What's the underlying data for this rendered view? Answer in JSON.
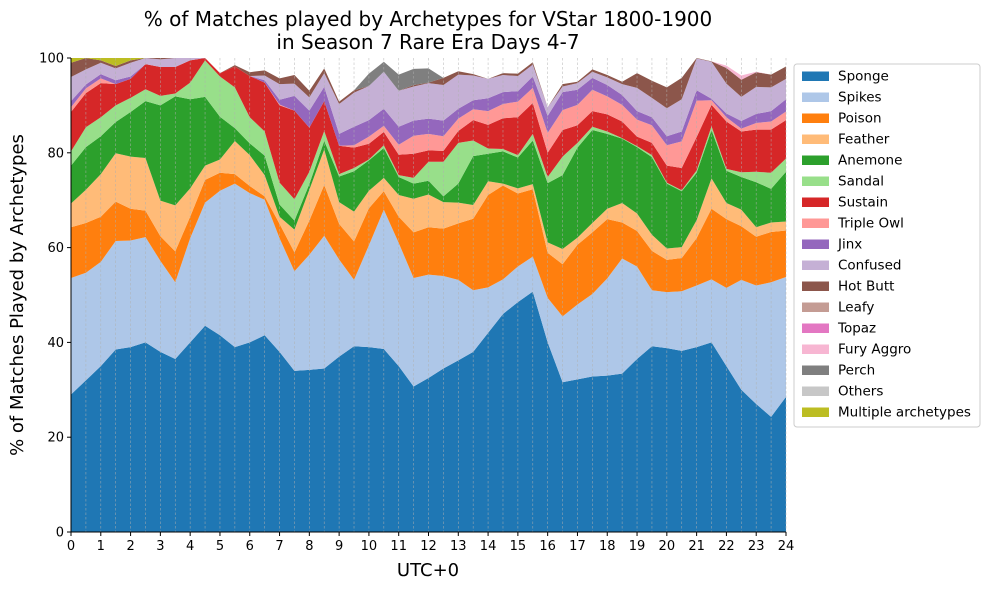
{
  "chart_data": {
    "type": "area",
    "stacked": true,
    "title": "% of Matches played by Archetypes for VStar 1800-1900",
    "subtitle": "in Season 7 Rare Era Days 4-7",
    "xlabel": "UTC+0",
    "ylabel": "% of Matches Played by Archetypes",
    "xlim": [
      0,
      24
    ],
    "ylim": [
      0,
      100
    ],
    "xticks": [
      "0",
      "1",
      "2",
      "3",
      "4",
      "5",
      "6",
      "7",
      "8",
      "9",
      "10",
      "11",
      "12",
      "13",
      "14",
      "15",
      "16",
      "17",
      "18",
      "19",
      "20",
      "21",
      "22",
      "23",
      "24"
    ],
    "yticks": [
      "0",
      "20",
      "40",
      "60",
      "80",
      "100"
    ],
    "grid": "vertical dashed",
    "legend_position": "outside-right",
    "x": [
      0,
      0.5,
      1,
      1.5,
      2,
      2.5,
      3,
      3.5,
      4,
      4.5,
      5,
      5.5,
      6,
      6.5,
      7,
      7.5,
      8,
      8.5,
      9,
      9.5,
      10,
      10.5,
      11,
      11.5,
      12,
      12.5,
      13,
      13.5,
      14,
      14.5,
      15,
      15.5,
      16,
      16.5,
      17,
      17.5,
      18,
      18.5,
      19,
      19.5,
      20,
      20.5,
      21,
      21.5,
      22,
      22.5,
      23,
      23.5,
      24
    ],
    "series": [
      {
        "name": "Sponge",
        "color": "#1f77b4",
        "values": [
          29,
          32,
          35,
          38.5,
          39,
          40,
          38,
          36.5,
          40,
          43.5,
          41.5,
          39,
          40,
          41.5,
          38,
          34,
          34.2,
          34.5,
          37,
          39.2,
          39,
          38.6,
          35,
          30.7,
          32.5,
          34.5,
          36.2,
          38,
          42,
          46,
          48.5,
          50.7,
          40,
          31.6,
          32.2,
          32.8,
          33,
          33.4,
          36.5,
          39.2,
          38.8,
          38.2,
          39,
          40,
          35,
          30,
          27,
          24.3,
          28.5
        ]
      },
      {
        "name": "Spikes",
        "color": "#aec7e8",
        "values": [
          24.6,
          22.7,
          22,
          22.9,
          22.5,
          22.2,
          19.2,
          16.2,
          22,
          26,
          30.5,
          34.5,
          31.5,
          28.6,
          24,
          21,
          24.3,
          28,
          20.5,
          14,
          21.5,
          29.4,
          26,
          22.9,
          21.8,
          19.5,
          17,
          13,
          9.6,
          7.3,
          7.5,
          7.4,
          9.4,
          13.9,
          15.8,
          17.4,
          20.5,
          24.3,
          19.5,
          11.8,
          11.8,
          12.6,
          13,
          13.3,
          16.5,
          23.2,
          25,
          28.4,
          25.3
        ]
      },
      {
        "name": "Poison",
        "color": "#ff7f0e",
        "values": [
          10.7,
          10.5,
          9.5,
          8.3,
          6.7,
          5.6,
          5.2,
          6.5,
          4.5,
          4.8,
          3.8,
          2,
          1.5,
          0.7,
          3,
          4,
          7.2,
          10.7,
          7.5,
          8.1,
          7.8,
          3.9,
          5.5,
          9.6,
          10,
          10,
          11.9,
          15.1,
          19.5,
          19.8,
          15.4,
          14.2,
          9.5,
          11,
          12.6,
          13,
          12.5,
          7.6,
          7.5,
          8.3,
          6.8,
          7,
          10,
          14.9,
          14.5,
          11.3,
          10.3,
          10.6,
          9.8
        ]
      },
      {
        "name": "Feather",
        "color": "#ffbb78",
        "values": [
          5,
          7,
          9,
          10.2,
          11,
          11.1,
          7.5,
          9.7,
          6,
          3,
          2.8,
          7,
          6.5,
          4.5,
          1.5,
          4.8,
          6.5,
          7.5,
          4.6,
          6.3,
          3.7,
          2.8,
          4.6,
          7.1,
          6.9,
          5.6,
          4.4,
          2.9,
          2.9,
          0.4,
          1.1,
          1.1,
          2.2,
          3.2,
          1.5,
          2,
          2.2,
          4.1,
          3.7,
          3.4,
          2.4,
          2.3,
          3.8,
          6.4,
          3.4,
          3.5,
          2,
          2,
          1.9
        ]
      },
      {
        "name": "Anemone",
        "color": "#2ca02c",
        "values": [
          8,
          9,
          8,
          6.6,
          9.4,
          12,
          20.1,
          23,
          18.8,
          14.5,
          9,
          2.7,
          2.5,
          4.1,
          2.6,
          1.9,
          1.2,
          1.8,
          5.4,
          8.5,
          6.4,
          6.3,
          3.8,
          3.2,
          2.9,
          1.2,
          4,
          10.3,
          5.8,
          6.8,
          6.5,
          9.2,
          12.5,
          15.6,
          19,
          19.6,
          15.8,
          13.6,
          14,
          16.4,
          13.7,
          11.8,
          10,
          10.2,
          6.8,
          6.9,
          9.5,
          7.1,
          10.5
        ]
      },
      {
        "name": "Sandal",
        "color": "#98df8a",
        "values": [
          3,
          4.2,
          4,
          3.5,
          3,
          2.5,
          2,
          0.6,
          3.5,
          7.7,
          8.5,
          8.6,
          5.5,
          5.1,
          4.6,
          4.5,
          2.6,
          2.1,
          0.5,
          0.7,
          0.2,
          0.6,
          0.4,
          1.2,
          4,
          7.3,
          8.6,
          3.3,
          1.1,
          0.5,
          0.5,
          1.4,
          1.3,
          3.9,
          1,
          0.7,
          0.5,
          0.1,
          0.2,
          0.4,
          0.2,
          0.2,
          0.5,
          0.8,
          0.4,
          1,
          2.2,
          3.4,
          2.8
        ]
      },
      {
        "name": "Sustain",
        "color": "#d62728",
        "values": [
          8.3,
          7.2,
          7.2,
          4.5,
          4,
          5.3,
          6.1,
          5.6,
          4.7,
          0.5,
          0.7,
          4.4,
          8.7,
          10.3,
          16.3,
          18.7,
          9.3,
          6.3,
          6,
          4.3,
          3.3,
          2.8,
          4.3,
          5.1,
          2.4,
          2.3,
          2.5,
          4.3,
          5,
          6.5,
          8,
          6.5,
          5.1,
          5.6,
          3.7,
          3.3,
          3.6,
          3.5,
          2,
          2.6,
          3.6,
          4.7,
          7,
          4.5,
          10,
          8.6,
          8.9,
          9.1,
          8.1
        ]
      },
      {
        "name": "Triple Owl",
        "color": "#ff9896",
        "values": [
          1,
          1,
          1,
          0,
          0,
          0,
          0,
          0,
          0,
          0,
          0,
          0,
          0,
          0,
          0.2,
          0,
          0,
          0,
          0,
          0.5,
          1.5,
          1.3,
          2.1,
          3.8,
          3.5,
          3.1,
          2.6,
          2.3,
          2.9,
          3,
          3.3,
          3.2,
          4.2,
          4.2,
          4.3,
          4.5,
          3.8,
          3.5,
          3.6,
          3.7,
          4.3,
          5.6,
          7.7,
          1,
          0.9,
          0.6,
          1.4,
          1.7,
          1.8
        ]
      },
      {
        "name": "Jinx",
        "color": "#9467bd",
        "values": [
          1.3,
          0.8,
          0.9,
          0.8,
          0.5,
          0,
          0,
          0,
          0,
          0,
          0,
          0,
          0,
          0.5,
          1,
          3.1,
          3.6,
          3,
          2.5,
          3.9,
          3.5,
          3.6,
          3.8,
          3.2,
          3.2,
          3.3,
          2.1,
          1.9,
          2.7,
          2.5,
          2.2,
          2.4,
          3.6,
          3.8,
          3.2,
          2.5,
          2.4,
          2.1,
          1.8,
          1.7,
          1.9,
          2.1,
          2.2,
          0.3,
          0.8,
          1.6,
          1.9,
          2.2,
          2.6
        ]
      },
      {
        "name": "Confused",
        "color": "#c5b0d5",
        "values": [
          5.1,
          3.2,
          2.4,
          2.5,
          2.9,
          1.4,
          1.6,
          2.3,
          1.4,
          0,
          0,
          0,
          0,
          1,
          3.3,
          2.6,
          2.8,
          2.9,
          6.3,
          7.2,
          7.2,
          7.8,
          7.6,
          7.2,
          7.5,
          7.5,
          7.2,
          5.2,
          4.1,
          3.6,
          3.2,
          2.5,
          1.8,
          1.2,
          1.4,
          1.3,
          1.6,
          2.3,
          4.9,
          4.1,
          5.9,
          6.8,
          6.7,
          7.8,
          6.3,
          5.1,
          5.7,
          5,
          4.3
        ]
      },
      {
        "name": "Hot Butt",
        "color": "#8c564b",
        "values": [
          3,
          3.4,
          0.5,
          0.5,
          0.5,
          1.4,
          0.3,
          0,
          0,
          0,
          0,
          0.3,
          0.8,
          1.1,
          1.2,
          1.8,
          1.4,
          1,
          0.5,
          0.5,
          0,
          0,
          0,
          0.3,
          0.1,
          1.5,
          0.7,
          0.3,
          0,
          0.4,
          0.5,
          0.5,
          0,
          0.5,
          0.3,
          0.5,
          0.5,
          0.5,
          3.1,
          3.6,
          4.4,
          4.5,
          0.5,
          0.1,
          3.3,
          3.6,
          3.1,
          2.7,
          2.6
        ]
      },
      {
        "name": "Leafy",
        "color": "#c49c94",
        "values": [
          0,
          0,
          0,
          0,
          0,
          0,
          0,
          0,
          0,
          0,
          0,
          0,
          0,
          0,
          0,
          0,
          0,
          0,
          0,
          0,
          0,
          0,
          0,
          0,
          0,
          0,
          0,
          0,
          0,
          0,
          0,
          0,
          0,
          0,
          0,
          0,
          0,
          0,
          0,
          0,
          0,
          0,
          0,
          0,
          0,
          0,
          0,
          0,
          0
        ]
      },
      {
        "name": "Topaz",
        "color": "#e377c2",
        "values": [
          0,
          0,
          0,
          0,
          0,
          0,
          0,
          0,
          0,
          0,
          0,
          0,
          0,
          0,
          0,
          0,
          0,
          0,
          0,
          0,
          0,
          0,
          0,
          0,
          0,
          0,
          0,
          0,
          0,
          0,
          0,
          0,
          0,
          0,
          0,
          0,
          0,
          0,
          0,
          0,
          0,
          0,
          0,
          0,
          0,
          0,
          0,
          0,
          0
        ]
      },
      {
        "name": "Fury Aggro",
        "color": "#f7b6d2",
        "values": [
          0,
          0,
          0,
          0,
          0,
          0,
          0,
          0,
          0,
          0,
          0,
          0,
          0,
          0,
          0,
          0,
          0,
          0,
          0,
          0,
          0,
          0,
          0,
          0,
          0,
          0,
          0,
          0,
          0,
          0,
          0,
          0,
          0,
          0,
          0,
          0,
          0,
          0,
          0,
          0,
          0,
          0,
          0,
          0,
          0.5,
          0.9,
          0.1,
          0,
          0
        ]
      },
      {
        "name": "Perch",
        "color": "#7f7f7f",
        "values": [
          0,
          0,
          0,
          0,
          0,
          0,
          0,
          0,
          0,
          0,
          0,
          0,
          0,
          0,
          0,
          0,
          0,
          0,
          0,
          0,
          2.6,
          2.1,
          3.4,
          3.4,
          3,
          0,
          0,
          0,
          0,
          0,
          0,
          0,
          0,
          0,
          0,
          0,
          0,
          0,
          0,
          0,
          0,
          0,
          0,
          0,
          0,
          0,
          0,
          0,
          0
        ]
      },
      {
        "name": "Others",
        "color": "#c7c7c7",
        "values": [
          0,
          0,
          0,
          0,
          0,
          0,
          0,
          0,
          0,
          0,
          0,
          0,
          0,
          0,
          0,
          0,
          0,
          0,
          0,
          0,
          0,
          0,
          0,
          0,
          0,
          0,
          0,
          0,
          0,
          0,
          0,
          0,
          0,
          0,
          0,
          0,
          0,
          0,
          0,
          0,
          0,
          0,
          0,
          0,
          0,
          0,
          0,
          0,
          0
        ]
      },
      {
        "name": "Multiple archetypes",
        "color": "#bcbd22",
        "values": [
          1,
          0.6,
          0.9,
          1.8,
          1,
          0.5,
          0,
          0,
          0,
          0,
          0,
          0,
          0,
          0,
          0,
          0,
          0,
          0,
          0,
          0,
          0,
          0,
          0,
          0,
          0,
          0,
          0,
          0,
          0,
          0,
          0,
          0,
          0,
          0,
          0,
          0,
          0,
          0,
          0,
          0,
          0,
          0,
          0,
          0,
          0,
          0,
          0,
          0,
          0
        ]
      }
    ]
  }
}
